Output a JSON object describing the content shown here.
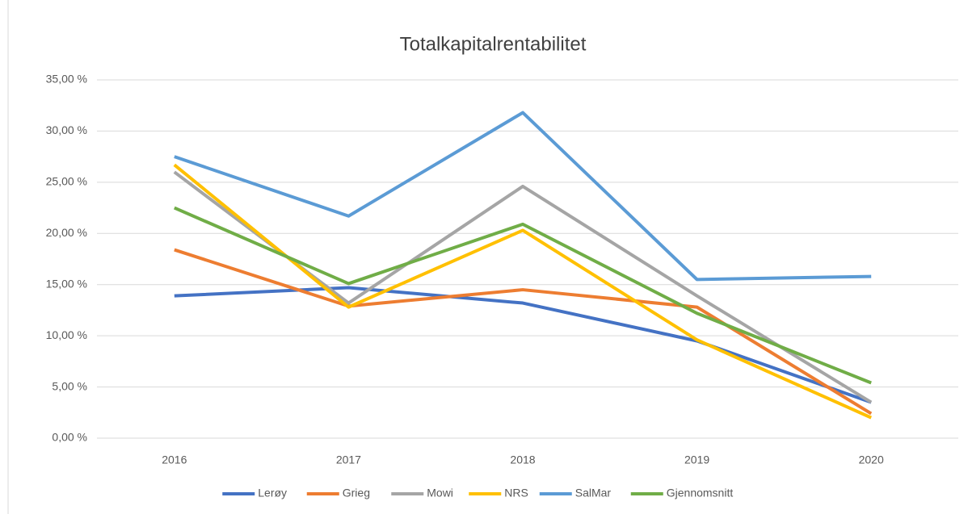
{
  "chart_data": {
    "type": "line",
    "title": "Totalkapitalrentabilitet",
    "categories": [
      "2016",
      "2017",
      "2018",
      "2019",
      "2020"
    ],
    "series": [
      {
        "name": "Lerøy",
        "color": "#4472c4",
        "values": [
          13.9,
          14.7,
          13.2,
          9.5,
          3.5
        ]
      },
      {
        "name": "Grieg",
        "color": "#ed7d31",
        "values": [
          18.4,
          12.9,
          14.5,
          12.8,
          2.4
        ]
      },
      {
        "name": "Mowi",
        "color": "#a5a5a5",
        "values": [
          26.0,
          13.2,
          24.6,
          13.9,
          3.5
        ]
      },
      {
        "name": "NRS",
        "color": "#ffc000",
        "values": [
          26.7,
          12.8,
          20.3,
          9.6,
          2.0
        ]
      },
      {
        "name": "SalMar",
        "color": "#5b9bd5",
        "values": [
          27.5,
          21.7,
          31.8,
          15.5,
          15.8
        ]
      },
      {
        "name": "Gjennomsnitt",
        "color": "#70ad47",
        "values": [
          22.5,
          15.1,
          20.9,
          12.2,
          5.4
        ]
      }
    ],
    "ylim": [
      0,
      35
    ],
    "yticks": [
      {
        "value": 0,
        "label": "0,00 %"
      },
      {
        "value": 5,
        "label": "5,00 %"
      },
      {
        "value": 10,
        "label": "10,00 %"
      },
      {
        "value": 15,
        "label": "15,00 %"
      },
      {
        "value": 20,
        "label": "20,00 %"
      },
      {
        "value": 25,
        "label": "25,00 %"
      },
      {
        "value": 30,
        "label": "30,00 %"
      },
      {
        "value": 35,
        "label": "35,00 %"
      }
    ],
    "grid": true,
    "legend": "bottom"
  }
}
